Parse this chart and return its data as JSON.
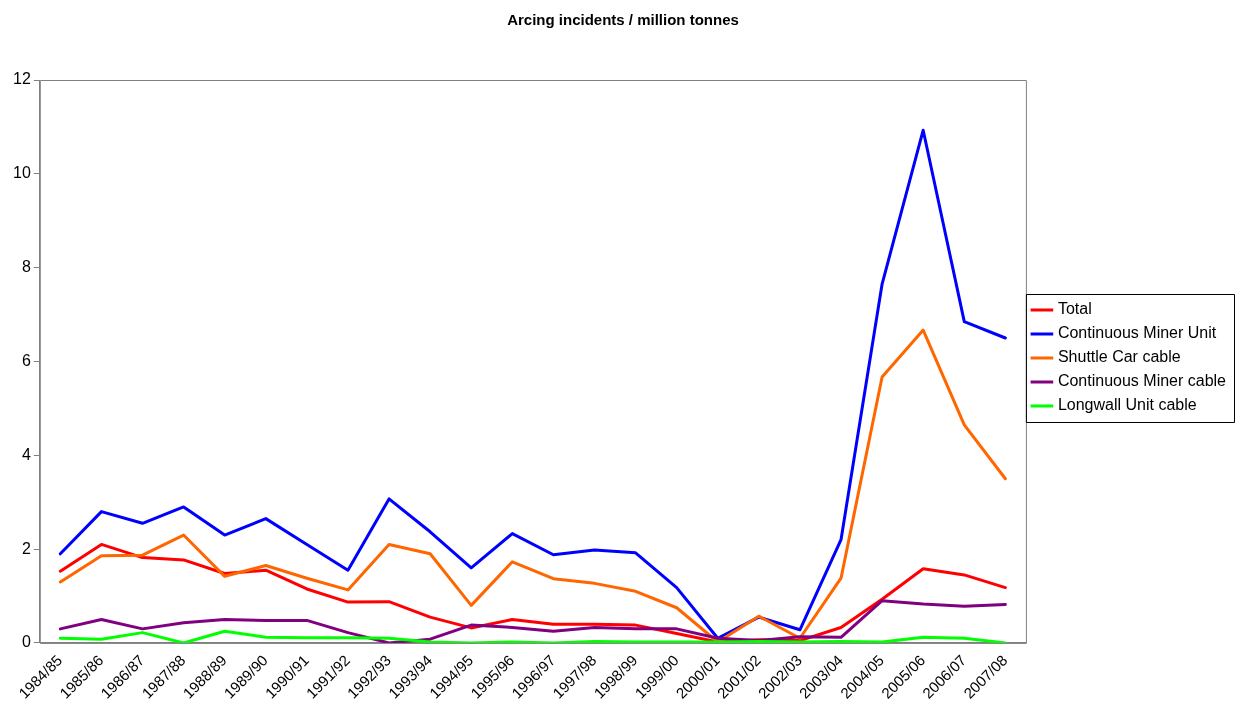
{
  "chart_data": {
    "type": "line",
    "title": "Arcing incidents / million tonnes",
    "categories": [
      "1984/85",
      "1985/86",
      "1986/87",
      "1987/88",
      "1988/89",
      "1989/90",
      "1990/91",
      "1991/92",
      "1992/93",
      "1993/94",
      "1994/95",
      "1995/96",
      "1996/97",
      "1997/98",
      "1998/99",
      "1999/00",
      "2000/01",
      "2001/02",
      "2002/03",
      "2003/04",
      "2004/05",
      "2005/06",
      "2006/07",
      "2007/08"
    ],
    "series": [
      {
        "name": "Total",
        "color": "#ff0000",
        "values": [
          1.53,
          2.1,
          1.82,
          1.77,
          1.48,
          1.55,
          1.15,
          0.87,
          0.88,
          0.55,
          0.32,
          0.5,
          0.4,
          0.4,
          0.38,
          0.2,
          0.02,
          0.07,
          0.05,
          0.33,
          0.93,
          1.58,
          1.45,
          1.18
        ]
      },
      {
        "name": "Continuous Miner Unit",
        "color": "#0000ff",
        "values": [
          1.9,
          2.8,
          2.55,
          2.9,
          2.3,
          2.65,
          2.1,
          1.55,
          3.07,
          2.37,
          1.6,
          2.33,
          1.88,
          1.98,
          1.92,
          1.18,
          0.1,
          0.55,
          0.28,
          2.2,
          7.65,
          10.93,
          6.85,
          6.5
        ]
      },
      {
        "name": "Shuttle Car cable",
        "color": "#ff6600",
        "values": [
          1.3,
          1.86,
          1.87,
          2.3,
          1.42,
          1.65,
          1.38,
          1.13,
          2.1,
          1.9,
          0.8,
          1.73,
          1.37,
          1.27,
          1.1,
          0.75,
          0.02,
          0.57,
          0.1,
          1.38,
          5.67,
          6.67,
          4.65,
          3.5
        ]
      },
      {
        "name": "Continuous Miner cable",
        "color": "#800080",
        "values": [
          0.3,
          0.5,
          0.3,
          0.43,
          0.5,
          0.48,
          0.48,
          0.22,
          0,
          0.08,
          0.38,
          0.33,
          0.25,
          0.33,
          0.3,
          0.3,
          0.1,
          0.05,
          0.13,
          0.12,
          0.9,
          0.83,
          0.78,
          0.82
        ]
      },
      {
        "name": "Longwall Unit cable",
        "color": "#00ff00",
        "values": [
          0.1,
          0.08,
          0.22,
          0,
          0.25,
          0.12,
          0.11,
          0.11,
          0.1,
          0.02,
          0,
          0.02,
          0,
          0.03,
          0.02,
          0.02,
          0.02,
          0.03,
          0.02,
          0.03,
          0.02,
          0.12,
          0.1,
          0
        ]
      }
    ],
    "ylim": [
      0,
      12
    ],
    "yticks": [
      0,
      2,
      4,
      6,
      8,
      10,
      12
    ],
    "grid": false,
    "legend": "right",
    "marker": "none",
    "line_style": "solid"
  }
}
